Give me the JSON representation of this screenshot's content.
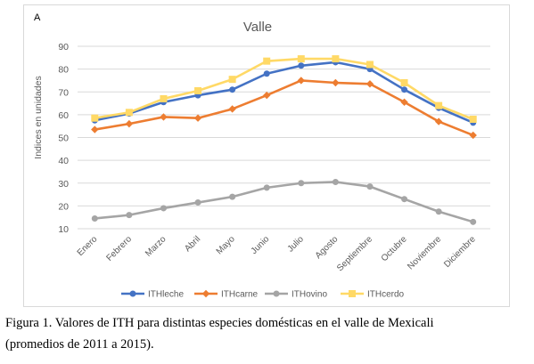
{
  "chart_data": {
    "type": "line",
    "panel_label": "A",
    "title": "Valle",
    "ylabel": "Indices en unidades",
    "xlabel": "",
    "ylim": [
      10,
      90
    ],
    "yticks": [
      10,
      20,
      30,
      40,
      50,
      60,
      70,
      80,
      90
    ],
    "grid": true,
    "legend_position": "bottom",
    "categories": [
      "Enero",
      "Febrero",
      "Marzo",
      "Abril",
      "Mayo",
      "Junio",
      "Julio",
      "Agosto",
      "Septiembre",
      "Octubre",
      "Noviembre",
      "Diciembre"
    ],
    "series": [
      {
        "name": "ITHleche",
        "color": "#4472c4",
        "marker": "circle",
        "values": [
          57.5,
          60.5,
          65.5,
          68.5,
          71.0,
          78.0,
          81.5,
          83.0,
          80.0,
          71.0,
          63.0,
          56.5
        ]
      },
      {
        "name": "ITHcarne",
        "color": "#ed7d31",
        "marker": "diamond",
        "values": [
          53.5,
          56.0,
          59.0,
          58.5,
          62.5,
          68.5,
          75.0,
          74.0,
          73.5,
          65.5,
          57.0,
          51.0
        ]
      },
      {
        "name": "ITHovino",
        "color": "#a5a5a5",
        "marker": "circle",
        "values": [
          14.5,
          16.0,
          19.0,
          21.5,
          24.0,
          28.0,
          30.0,
          30.5,
          28.5,
          23.0,
          17.5,
          13.0
        ]
      },
      {
        "name": "ITHcerdo",
        "color": "#ffd966",
        "marker": "square",
        "values": [
          58.5,
          61.0,
          67.0,
          70.5,
          75.5,
          83.5,
          84.5,
          84.5,
          82.0,
          74.0,
          64.0,
          58.0
        ]
      }
    ]
  },
  "caption": {
    "line1": "Figura 1. Valores de ITH para distintas especies domésticas en el valle de Mexicali",
    "line2": "(promedios de 2011 a 2015)."
  }
}
